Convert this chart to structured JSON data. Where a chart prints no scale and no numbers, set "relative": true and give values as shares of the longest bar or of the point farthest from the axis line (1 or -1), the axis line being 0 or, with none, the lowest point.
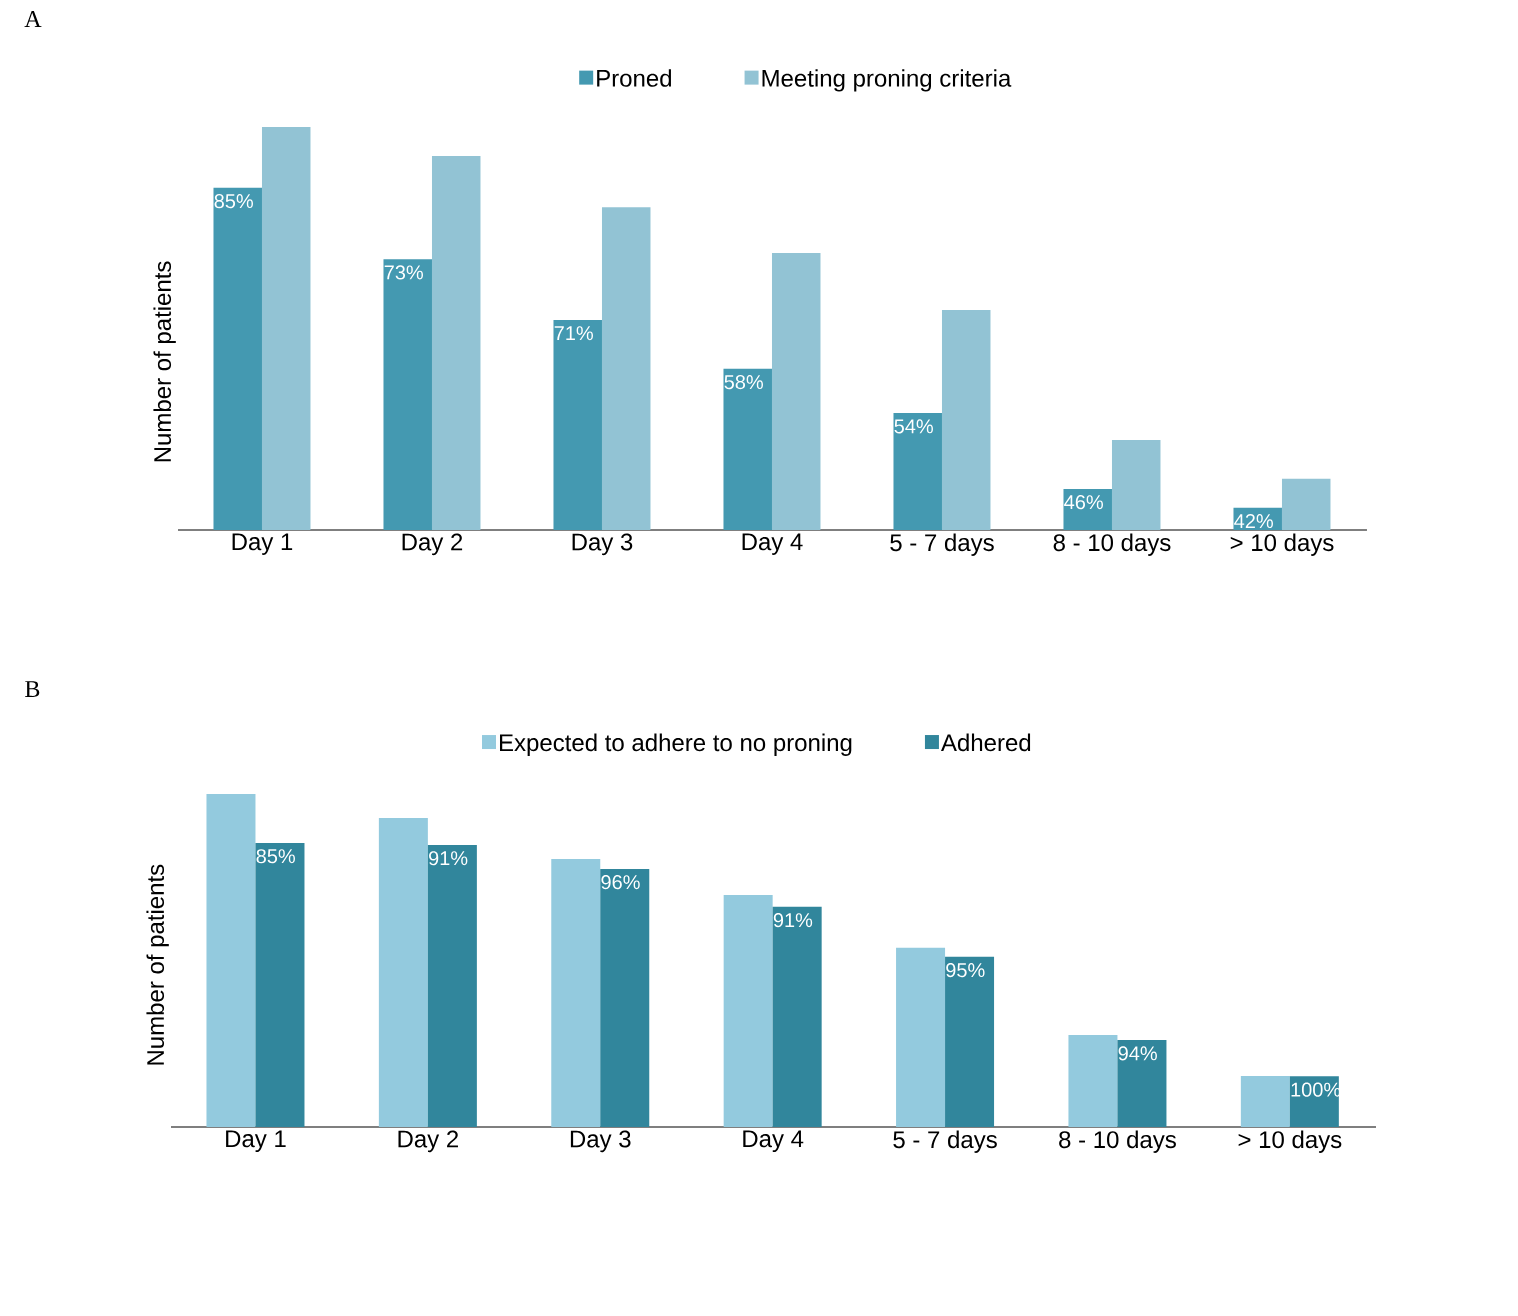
{
  "chart_data": [
    {
      "type": "bar",
      "title": "A",
      "ylabel": "Number of patients",
      "relative": true,
      "legend": "top",
      "categories": [
        "Day 1",
        "Day 2",
        "Day 3",
        "Day 4",
        "5 - 7 days",
        "8 - 10 days",
        "> 10 days"
      ],
      "series": [
        {
          "name": "Proned",
          "color": "#4499b1",
          "values": [
            0.849,
            0.672,
            0.521,
            0.4,
            0.29,
            0.102,
            0.055
          ]
        },
        {
          "name": "Meeting proning criteria",
          "color": "#92c3d4",
          "values": [
            1,
            0.928,
            0.801,
            0.687,
            0.546,
            0.223,
            0.127
          ]
        }
      ],
      "annotations": [
        {
          "text": "85%",
          "x": "Day 1",
          "y": 0.849
        },
        {
          "text": "73%",
          "x": "Day 2",
          "y": 0.672
        },
        {
          "text": "71%",
          "x": "Day 3",
          "y": 0.521
        },
        {
          "text": "58%",
          "x": "Day 4",
          "y": 0.4
        },
        {
          "text": "54%",
          "x": "5 - 7 days",
          "y": 0.29
        },
        {
          "text": "46%",
          "x": "8 - 10 days",
          "y": 0.102
        },
        {
          "text": "42%",
          "x": "> 10 days",
          "y": 0.055
        }
      ]
    },
    {
      "type": "bar",
      "title": "B",
      "ylabel": "Number of patients",
      "relative": true,
      "legend": "top",
      "categories": [
        "Day 1",
        "Day 2",
        "Day 3",
        "Day 4",
        "5 - 7 days",
        "8 - 10 days",
        "> 10 days"
      ],
      "series": [
        {
          "name": "Expected to adhere to no proning",
          "color": "#93cade",
          "values": [
            1,
            0.928,
            0.805,
            0.697,
            0.538,
            0.276,
            0.153
          ]
        },
        {
          "name": "Adhered",
          "color": "#31869c",
          "values": [
            0.853,
            0.847,
            0.775,
            0.661,
            0.511,
            0.261,
            0.152
          ]
        }
      ],
      "annotations": [
        {
          "text": "85%",
          "x": "Day 1",
          "y": 0.853
        },
        {
          "text": "91%",
          "x": "Day 2",
          "y": 0.847
        },
        {
          "text": "96%",
          "x": "Day 3",
          "y": 0.775
        },
        {
          "text": "91%",
          "x": "Day 4",
          "y": 0.661
        },
        {
          "text": "95%",
          "x": "5 - 7 days",
          "y": 0.511
        },
        {
          "text": "94%",
          "x": "8 - 10 days",
          "y": 0.261
        },
        {
          "text": "100%",
          "x": "> 10 days",
          "y": 0.152
        }
      ]
    }
  ]
}
